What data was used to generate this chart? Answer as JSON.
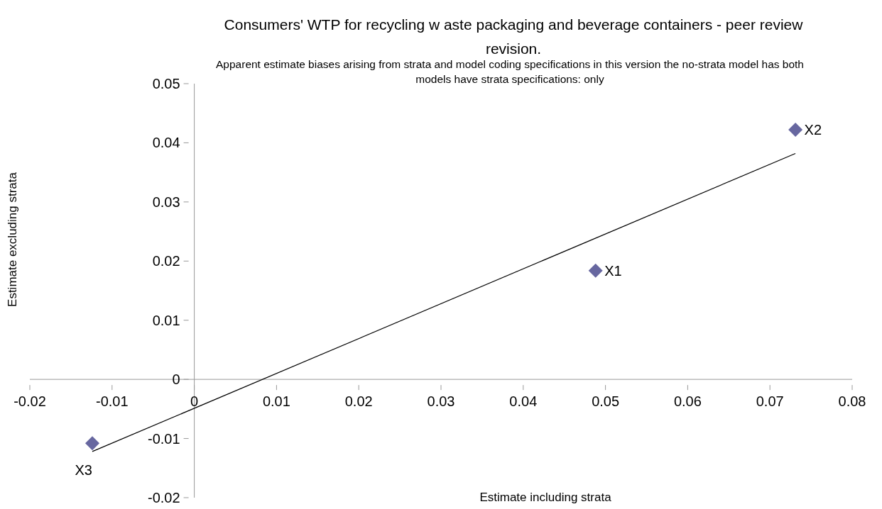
{
  "chart_data": {
    "type": "scatter",
    "title": "Consumers' WTP for recycling w aste packaging and beverage containers - peer review revision.",
    "subtitle": "Apparent estimate biases arising from strata and model coding specifications in this version the no-strata model has both models have strata specifications: only",
    "xlabel": "Estimate including strata",
    "ylabel": "Estimate excluding strata",
    "series": [
      {
        "color": "#6767a0",
        "marker": "diamond",
        "x": [
          0.0488,
          0.0731,
          -0.0124
        ],
        "values": [
          0.0184,
          0.0422,
          -0.0108
        ],
        "value_labels": [
          "X1",
          "X2",
          "X3"
        ]
      },
      {
        "type": "line",
        "color": "#000000",
        "marker": "none",
        "x": [
          -0.0124,
          0.0731
        ],
        "values": [
          -0.0122,
          0.0382
        ]
      }
    ],
    "xlim": [
      -0.02,
      0.08
    ],
    "xticks": [
      -0.02,
      -0.01,
      0,
      0.01,
      0.02,
      0.03,
      0.04,
      0.05,
      0.06,
      0.07,
      0.08
    ],
    "ylim": [
      -0.02,
      0.05
    ],
    "yticks": [
      -0.02,
      -0.01,
      0,
      0.01,
      0.02,
      0.03,
      0.04,
      0.05
    ],
    "grid": false
  }
}
